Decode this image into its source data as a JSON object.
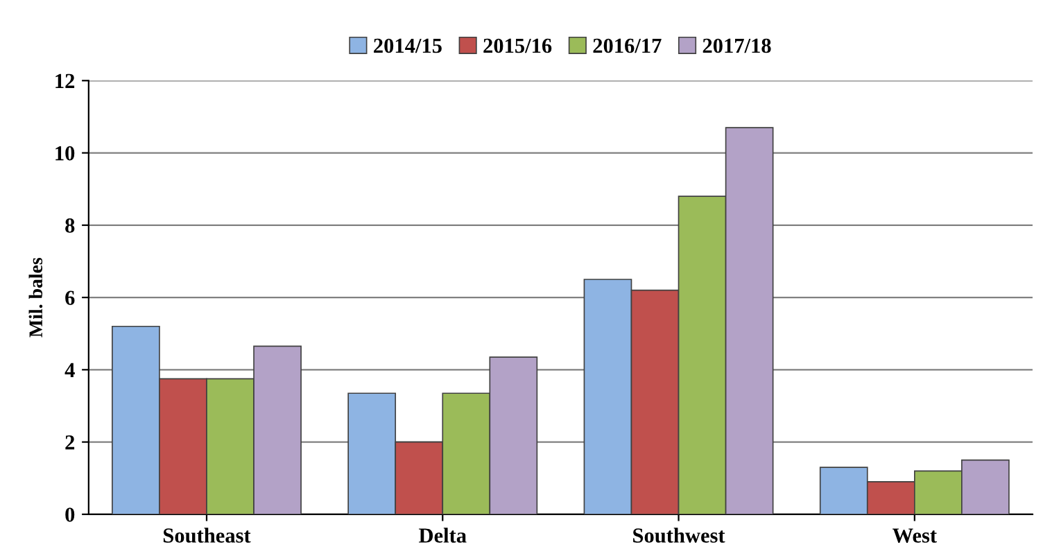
{
  "chart_data": {
    "type": "bar",
    "ylabel": "Mil. bales",
    "categories": [
      "Southeast",
      "Delta",
      "Southwest",
      "West"
    ],
    "series": [
      {
        "name": "2014/15",
        "color": "#8eb4e3",
        "values": [
          5.2,
          3.35,
          6.5,
          1.3
        ]
      },
      {
        "name": "2015/16",
        "color": "#c0504d",
        "values": [
          3.75,
          2.0,
          6.2,
          0.9
        ]
      },
      {
        "name": "2016/17",
        "color": "#9bbb59",
        "values": [
          3.75,
          3.35,
          8.8,
          1.2
        ]
      },
      {
        "name": "2017/18",
        "color": "#b3a2c7",
        "values": [
          4.65,
          4.35,
          10.7,
          1.5
        ]
      }
    ],
    "ylim": [
      0,
      12
    ],
    "yticks": [
      0,
      2,
      4,
      6,
      8,
      10,
      12
    ],
    "grid": "y",
    "legend": "top"
  }
}
